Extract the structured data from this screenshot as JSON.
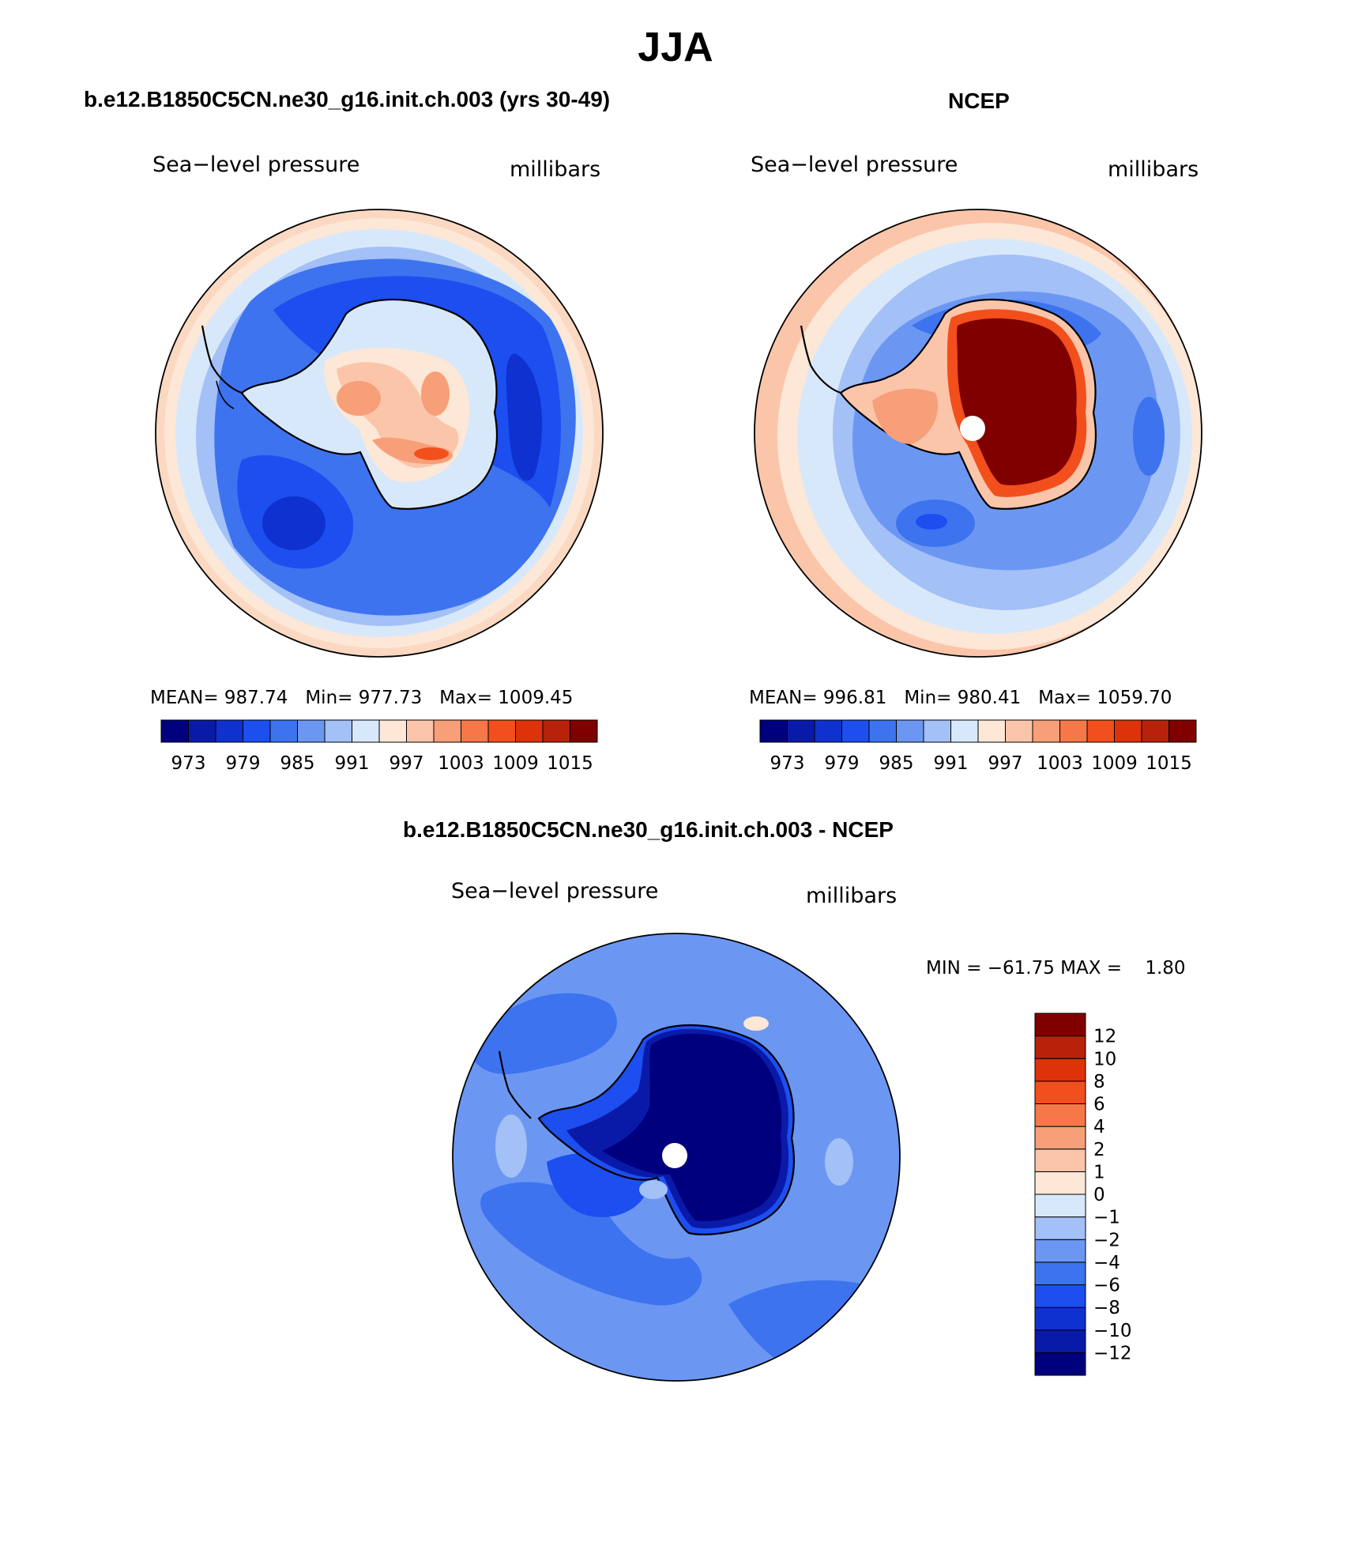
{
  "title": "JJA",
  "panels": [
    {
      "title": "b.e12.B1850C5CN.ne30_g16.init.ch.003 (yrs 30-49)",
      "variable": "Sea−level pressure",
      "units": "millibars",
      "stats": {
        "mean_label": "MEAN=",
        "mean": "987.74",
        "min_label": "Min=",
        "min": "977.73",
        "max_label": "Max=",
        "max": "1009.45"
      }
    },
    {
      "title": "NCEP",
      "variable": "Sea−level pressure",
      "units": "millibars",
      "stats": {
        "mean_label": "MEAN=",
        "mean": "996.81",
        "min_label": "Min=",
        "min": "980.41",
        "max_label": "Max=",
        "max": "1059.70"
      }
    },
    {
      "title": "b.e12.B1850C5CN.ne30_g16.init.ch.003 - NCEP",
      "variable": "Sea−level pressure",
      "units": "millibars",
      "stats": {
        "text": "MIN = −61.75 MAX =    1.80"
      }
    }
  ],
  "colorbar_horizontal": {
    "colors": [
      "#00007f",
      "#0a1aa8",
      "#0f31d0",
      "#1d4ef0",
      "#3d73ef",
      "#6b97f3",
      "#a3c0f7",
      "#d8e8fb",
      "#fde7d6",
      "#fbc5aa",
      "#f79f78",
      "#f67848",
      "#f24f1d",
      "#de320b",
      "#b8210a",
      "#800000"
    ],
    "labels": [
      "973",
      "979",
      "985",
      "991",
      "997",
      "1003",
      "1009",
      "1015"
    ]
  },
  "colorbar_vertical": {
    "colors": [
      "#00007f",
      "#0a1aa8",
      "#0f31d0",
      "#1d4ef0",
      "#3d73ef",
      "#6b97f3",
      "#a3c0f7",
      "#d8e8fb",
      "#fde7d6",
      "#fbc5aa",
      "#f79f78",
      "#f67848",
      "#f24f1d",
      "#de320b",
      "#b8210a",
      "#800000"
    ],
    "labels": [
      "−12",
      "−10",
      "−8",
      "−6",
      "−4",
      "−2",
      "−1",
      "0",
      "1",
      "2",
      "4",
      "6",
      "8",
      "10",
      "12"
    ]
  }
}
